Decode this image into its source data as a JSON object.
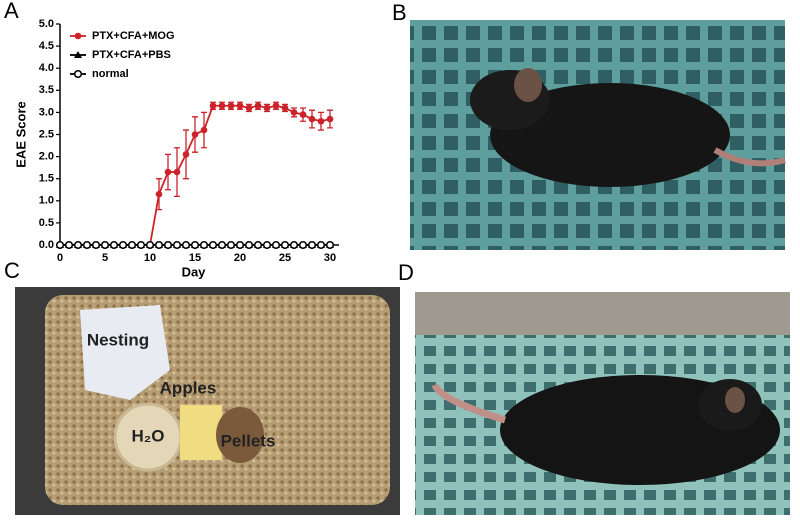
{
  "panels": {
    "a": "A",
    "b": "B",
    "c": "C",
    "d": "D"
  },
  "chart_data": {
    "type": "line",
    "x_label": "Day",
    "y_label": "EAE Score",
    "x": [
      0,
      1,
      2,
      3,
      4,
      5,
      6,
      7,
      8,
      9,
      10,
      11,
      12,
      13,
      14,
      15,
      16,
      17,
      18,
      19,
      20,
      21,
      22,
      23,
      24,
      25,
      26,
      27,
      28,
      29,
      30
    ],
    "xlim": [
      0,
      31
    ],
    "xticks": [
      0,
      5,
      10,
      15,
      20,
      25,
      30
    ],
    "ylim": [
      0,
      5
    ],
    "yticks": [
      {
        "value": 0,
        "label": "0.0"
      },
      {
        "value": 0.5,
        "label": "0.5"
      },
      {
        "value": 1,
        "label": "1.0"
      },
      {
        "value": 1.5,
        "label": "1.5"
      },
      {
        "value": 2,
        "label": "2.0"
      },
      {
        "value": 2.5,
        "label": "2.5"
      },
      {
        "value": 3,
        "label": "3.0"
      },
      {
        "value": 3.5,
        "label": "3.5"
      },
      {
        "value": 4,
        "label": "4.0"
      },
      {
        "value": 4.5,
        "label": "4.5"
      },
      {
        "value": 5,
        "label": "5.0"
      }
    ],
    "legend": "upper-left",
    "series": [
      {
        "name": "PTX+CFA+MOG",
        "color": "#cc2229",
        "marker": "filled-circle",
        "values": [
          0,
          0,
          0,
          0,
          0,
          0,
          0,
          0,
          0,
          0,
          0,
          1.15,
          1.65,
          1.65,
          2.05,
          2.5,
          2.6,
          3.15,
          3.15,
          3.15,
          3.15,
          3.1,
          3.15,
          3.1,
          3.15,
          3.1,
          3.0,
          2.95,
          2.85,
          2.8,
          2.85
        ],
        "errors": [
          null,
          null,
          null,
          null,
          null,
          null,
          null,
          null,
          null,
          null,
          null,
          0.35,
          0.4,
          0.55,
          0.55,
          0.4,
          0.4,
          0.08,
          0.08,
          0.08,
          0.08,
          0.08,
          0.08,
          0.08,
          0.08,
          0.08,
          0.1,
          0.15,
          0.2,
          0.2,
          0.2
        ]
      },
      {
        "name": "PTX+CFA+PBS",
        "color": "#000000",
        "marker": "triangle",
        "values": [
          0,
          0,
          0,
          0,
          0,
          0,
          0,
          0,
          0,
          0,
          0,
          0,
          0,
          0,
          0,
          0,
          0,
          0,
          0,
          0,
          0,
          0,
          0,
          0,
          0,
          0,
          0,
          0,
          0,
          0,
          0
        ]
      },
      {
        "name": "normal",
        "color": "#000000",
        "marker": "open-circle",
        "values": [
          0,
          0,
          0,
          0,
          0,
          0,
          0,
          0,
          0,
          0,
          0,
          0,
          0,
          0,
          0,
          0,
          0,
          0,
          0,
          0,
          0,
          0,
          0,
          0,
          0,
          0,
          0,
          0,
          0,
          0,
          0
        ]
      }
    ]
  },
  "photo_c": {
    "nesting": "Nesting",
    "apples": "Apples",
    "water": "H₂O",
    "pellets": "Pellets"
  }
}
